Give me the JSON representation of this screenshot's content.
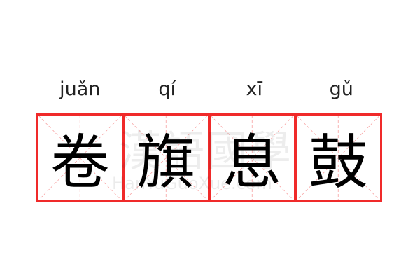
{
  "characters": [
    {
      "hanzi": "卷",
      "pinyin": "juǎn"
    },
    {
      "hanzi": "旗",
      "pinyin": "qí"
    },
    {
      "hanzi": "息",
      "pinyin": "xī"
    },
    {
      "hanzi": "鼓",
      "pinyin": "gǔ"
    }
  ],
  "watermark": {
    "chinese": "漢語國學",
    "latin": "HanYuGuoXue.com"
  },
  "colors": {
    "grid_border": "#f02a2a",
    "guide_lines": "#f7a0a0",
    "text": "#000000"
  }
}
